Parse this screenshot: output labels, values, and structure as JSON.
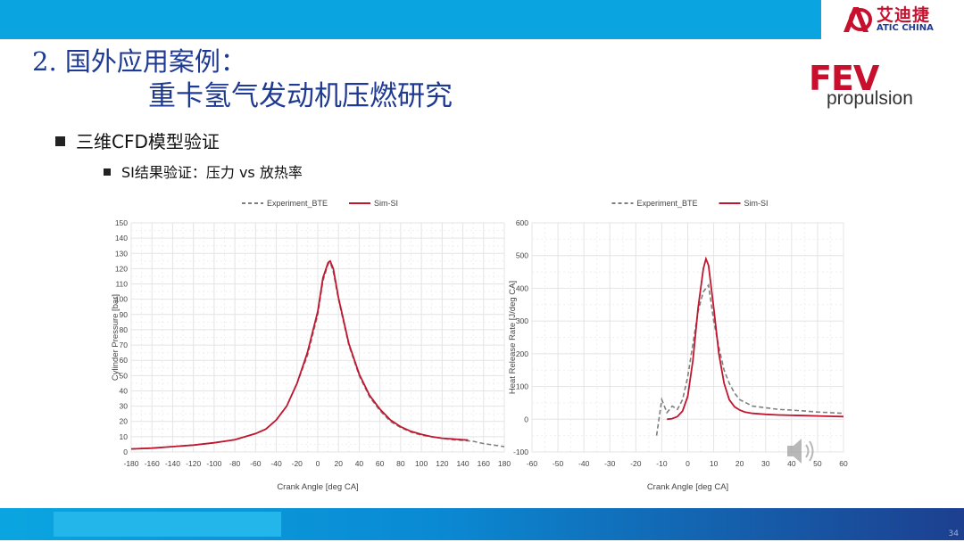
{
  "header": {
    "brand_cn": "艾迪捷",
    "brand_en": "ATIC CHINA",
    "title_line1": "2. 国外应用案例：",
    "title_line2": "重卡氢气发动机压燃研究",
    "partner_logo_main": "FEV",
    "partner_logo_sub": "propulsion",
    "colors": {
      "top_bar": "#0aa5e0",
      "title": "#1f3a93",
      "brand_red": "#c8102e"
    }
  },
  "bullets": {
    "level1": "三维CFD模型验证",
    "level2": "SI结果验证：压力 vs 放热率"
  },
  "footer": {
    "page_number": "34"
  },
  "chart_data": [
    {
      "type": "line",
      "xlabel": "Crank Angle [deg CA]",
      "ylabel": "Cylinder Pressure [bar]",
      "xlim": [
        -180,
        180
      ],
      "ylim": [
        0,
        150
      ],
      "xticks": [
        -180,
        -160,
        -140,
        -120,
        -100,
        -80,
        -60,
        -40,
        -20,
        0,
        20,
        40,
        60,
        80,
        100,
        120,
        140,
        160,
        180
      ],
      "yticks": [
        0,
        10,
        20,
        30,
        40,
        50,
        60,
        70,
        80,
        90,
        100,
        110,
        120,
        130,
        140,
        150
      ],
      "grid": true,
      "legend_position": "top",
      "series": [
        {
          "name": "Experiment_BTE",
          "style": "dashed",
          "color": "#7f7f7f",
          "x": [
            -180,
            -160,
            -140,
            -120,
            -100,
            -80,
            -60,
            -50,
            -40,
            -30,
            -20,
            -10,
            0,
            5,
            10,
            12,
            15,
            20,
            30,
            40,
            50,
            60,
            70,
            80,
            90,
            100,
            110,
            120,
            130,
            140,
            150,
            160,
            170,
            180
          ],
          "y": [
            2,
            2.5,
            3.5,
            4.5,
            6,
            8,
            12,
            15,
            21,
            30,
            45,
            63,
            90,
            112,
            123,
            124,
            118,
            100,
            70,
            50,
            36,
            27,
            20,
            16,
            13,
            11,
            10,
            9,
            8,
            7.5,
            7,
            5.5,
            4.5,
            3.5
          ]
        },
        {
          "name": "Sim-SI",
          "style": "solid",
          "color": "#c0162f",
          "x": [
            -180,
            -160,
            -140,
            -120,
            -100,
            -80,
            -60,
            -50,
            -40,
            -30,
            -20,
            -10,
            0,
            5,
            10,
            12,
            15,
            20,
            30,
            40,
            50,
            60,
            70,
            80,
            90,
            100,
            110,
            120,
            130,
            140,
            145
          ],
          "y": [
            2,
            2.5,
            3.5,
            4.5,
            6,
            8,
            12,
            15,
            21,
            30,
            45,
            65,
            92,
            114,
            124,
            125,
            120,
            101,
            71,
            51,
            37,
            28,
            21,
            16.5,
            13.5,
            11.5,
            10,
            9,
            8.5,
            8,
            7.8
          ]
        }
      ]
    },
    {
      "type": "line",
      "xlabel": "Crank Angle [deg CA]",
      "ylabel": "Heat Release Rate [J/deg CA]",
      "xlim": [
        -60,
        60
      ],
      "ylim": [
        -100,
        600
      ],
      "xticks": [
        -60,
        -50,
        -40,
        -30,
        -20,
        -10,
        0,
        10,
        20,
        30,
        40,
        50,
        60
      ],
      "yticks": [
        -100,
        0,
        100,
        200,
        300,
        400,
        500,
        600
      ],
      "grid": true,
      "legend_position": "top",
      "series": [
        {
          "name": "Experiment_BTE",
          "style": "dashed",
          "color": "#7f7f7f",
          "x": [
            -12,
            -10,
            -8,
            -6,
            -4,
            -2,
            0,
            2,
            4,
            6,
            8,
            10,
            12,
            14,
            16,
            18,
            20,
            25,
            30,
            35,
            40,
            45,
            50,
            55,
            60
          ],
          "y": [
            -50,
            60,
            20,
            40,
            30,
            60,
            130,
            230,
            330,
            390,
            410,
            300,
            220,
            150,
            110,
            80,
            60,
            40,
            35,
            30,
            28,
            25,
            22,
            20,
            18
          ]
        },
        {
          "name": "Sim-SI",
          "style": "solid",
          "color": "#c0162f",
          "x": [
            -8,
            -6,
            -4,
            -2,
            0,
            2,
            4,
            6,
            7,
            8,
            10,
            12,
            14,
            16,
            18,
            20,
            22,
            25,
            30,
            35,
            40,
            45,
            50,
            55,
            60
          ],
          "y": [
            0,
            2,
            8,
            25,
            70,
            180,
            340,
            460,
            490,
            470,
            340,
            200,
            110,
            60,
            38,
            28,
            22,
            18,
            15,
            13,
            12,
            11,
            10,
            9,
            8
          ]
        }
      ]
    }
  ]
}
